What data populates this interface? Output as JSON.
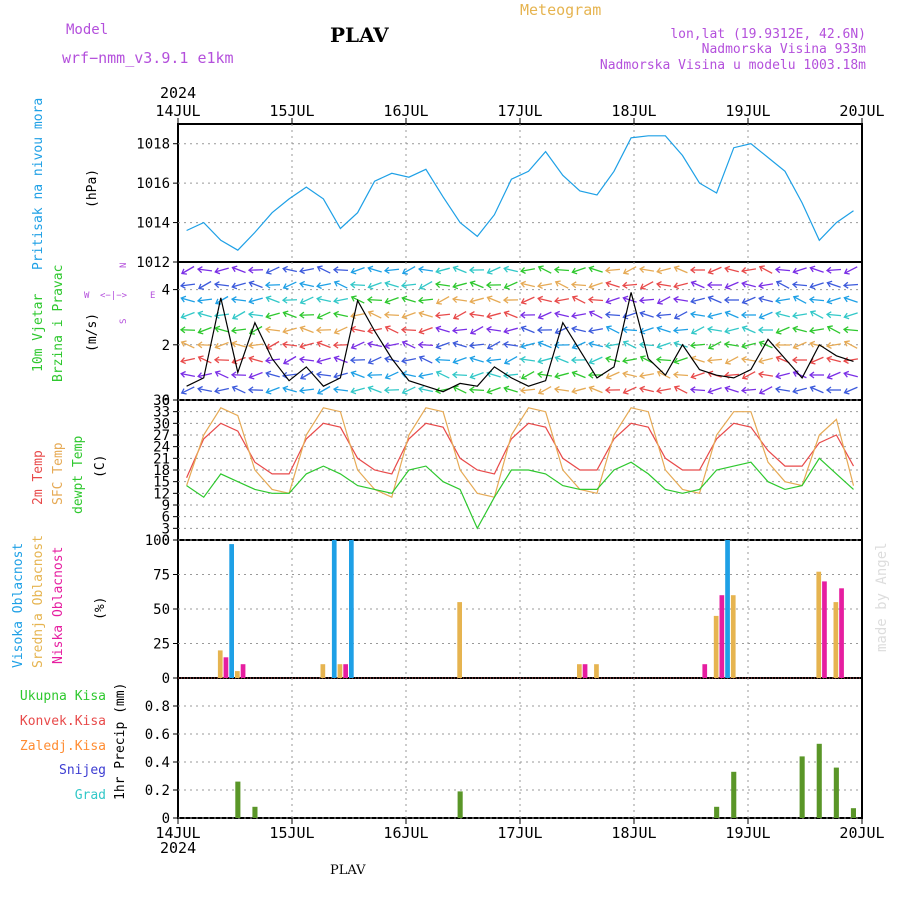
{
  "header": {
    "model_label": "Model",
    "model_name": "wrf−nmm_v3.9.1  e1km",
    "title": "PLAV",
    "meteogram_label": "Meteogram",
    "coords": "lon,lat (19.9312E, 42.6N)",
    "elevation": "Nadmorska Visina 933m",
    "model_elevation": "Nadmorska Visina u modelu 1003.18m",
    "year": "2024",
    "footer_station": "PLAV",
    "watermark": "made by Angel"
  },
  "colors": {
    "pressure": "#1ea0e6",
    "t2m": "#e84a4a",
    "tsfc": "#e6aa55",
    "dewpt": "#2ec82e",
    "cloud_high": "#1ea0e6",
    "cloud_mid": "#e6b450",
    "cloud_low": "#e61ea0",
    "precip_total": "#5a9628",
    "precip_conv": "#e84a4a",
    "precip_frozen": "#ff8c32",
    "precip_snow": "#3c3cd2",
    "precip_graupel": "#32c8c8",
    "wind_label": "#2ec82e",
    "compass": "#b450dc"
  },
  "chart_data": [
    {
      "type": "line",
      "panel": "pressure",
      "ylabels": [
        "Pritisak na nivou mora",
        "(hPa)"
      ],
      "ylim": [
        1012,
        1019
      ],
      "yticks": [
        1012,
        1014,
        1016,
        1018
      ],
      "x_day_ticks": [
        "14JUL",
        "15JUL",
        "16JUL",
        "17JUL",
        "18JUL",
        "19JUL",
        "20JUL"
      ],
      "x_step_hours": 3,
      "series": [
        {
          "values": [
            1013.6,
            1014.0,
            1013.1,
            1012.6,
            1013.5,
            1014.5,
            1015.2,
            1015.8,
            1015.2,
            1013.7,
            1014.5,
            1016.1,
            1016.5,
            1016.3,
            1016.7,
            1015.3,
            1014.0,
            1013.3,
            1014.4,
            1016.2,
            1016.6,
            1017.6,
            1016.4,
            1015.6,
            1015.4,
            1016.6,
            1018.3,
            1018.4,
            1018.4,
            1017.4,
            1016.0,
            1015.5,
            1017.8,
            1018.0,
            1017.3,
            1016.6,
            1015.0,
            1013.1,
            1014.0,
            1014.6
          ]
        }
      ]
    },
    {
      "type": "line",
      "panel": "wind",
      "ylabels": [
        "10m Vjetar",
        "Brzina i Pravac",
        "(m/s)"
      ],
      "compass": [
        "N",
        "W",
        "<−|−>",
        "E",
        "S"
      ],
      "ylim": [
        0,
        5
      ],
      "yticks": [
        0,
        2,
        4
      ],
      "series": [
        {
          "values": [
            0.5,
            0.8,
            3.7,
            1.0,
            2.8,
            1.5,
            0.7,
            1.2,
            0.5,
            0.8,
            3.6,
            2.5,
            1.5,
            0.7,
            0.5,
            0.3,
            0.6,
            0.5,
            1.2,
            0.8,
            0.5,
            0.7,
            2.8,
            1.8,
            0.8,
            1.2,
            3.9,
            1.5,
            0.9,
            2.0,
            1.1,
            0.9,
            0.8,
            1.1,
            2.2,
            1.5,
            0.8,
            2.0,
            1.6,
            1.4
          ]
        }
      ]
    },
    {
      "type": "line",
      "panel": "temperature",
      "ylabels": [
        "2m Temp",
        "SFC Temp",
        "dewpt Temp",
        "(C)"
      ],
      "ylim": [
        0,
        36
      ],
      "yticks": [
        0,
        3,
        6,
        9,
        12,
        15,
        18,
        21,
        24,
        27,
        30,
        33,
        36
      ],
      "series": [
        {
          "name": "2m Temp",
          "values": [
            16,
            26,
            30,
            28,
            20,
            17,
            17,
            26,
            30,
            29,
            21,
            18,
            17,
            26,
            30,
            29,
            21,
            18,
            17,
            26,
            30,
            29,
            21,
            18,
            18,
            26,
            30,
            29,
            21,
            18,
            18,
            26,
            30,
            29,
            23,
            19,
            19,
            25,
            27,
            19
          ]
        },
        {
          "name": "SFC Temp",
          "values": [
            14,
            27,
            34,
            32,
            18,
            13,
            12,
            27,
            34,
            33,
            18,
            13,
            11,
            27,
            34,
            33,
            18,
            12,
            11,
            27,
            34,
            33,
            18,
            13,
            12,
            27,
            34,
            33,
            18,
            13,
            12,
            27,
            33,
            33,
            20,
            15,
            14,
            27,
            31,
            14
          ]
        },
        {
          "name": "dewpt Temp",
          "values": [
            14,
            11,
            17,
            15,
            13,
            12,
            12,
            17,
            19,
            17,
            14,
            13,
            12,
            18,
            19,
            15,
            13,
            3,
            11,
            18,
            18,
            17,
            14,
            13,
            13,
            18,
            20,
            17,
            13,
            12,
            13,
            18,
            19,
            20,
            15,
            13,
            14,
            21,
            17,
            13
          ]
        }
      ]
    },
    {
      "type": "bar",
      "panel": "cloud",
      "ylabels": [
        "Visoka Oblacnost",
        "Srednja Oblacnost",
        "Niska Oblacnost",
        "(%)"
      ],
      "ylim": [
        0,
        100
      ],
      "yticks": [
        0,
        25,
        50,
        75,
        100
      ],
      "series": [
        {
          "name": "Visoka Oblacnost",
          "values": [
            0,
            0,
            0,
            97,
            0,
            0,
            0,
            0,
            0,
            100,
            100,
            0,
            0,
            0,
            0,
            0,
            0,
            0,
            0,
            0,
            0,
            0,
            0,
            0,
            0,
            0,
            0,
            0,
            0,
            0,
            0,
            0,
            100,
            0,
            0,
            0,
            0,
            0,
            0,
            0
          ]
        },
        {
          "name": "Srednja Oblacnost",
          "values": [
            0,
            0,
            20,
            5,
            0,
            0,
            0,
            0,
            10,
            10,
            0,
            0,
            0,
            0,
            0,
            0,
            55,
            0,
            0,
            0,
            0,
            0,
            0,
            10,
            10,
            0,
            0,
            0,
            0,
            0,
            0,
            45,
            60,
            0,
            0,
            0,
            0,
            77,
            55,
            0
          ]
        },
        {
          "name": "Niska Oblacnost",
          "values": [
            0,
            0,
            15,
            10,
            0,
            0,
            0,
            0,
            0,
            10,
            0,
            0,
            0,
            0,
            0,
            0,
            0,
            0,
            0,
            0,
            0,
            0,
            0,
            10,
            0,
            0,
            0,
            0,
            0,
            0,
            10,
            60,
            0,
            0,
            0,
            0,
            0,
            70,
            65,
            0
          ]
        }
      ]
    },
    {
      "type": "bar",
      "panel": "precip",
      "ylabels": [
        "Ukupna Kisa",
        "Konvek.Kisa",
        "Zaledj.Kisa",
        "Snijeg",
        "Grad",
        "1hr Precip (mm)"
      ],
      "ylim": [
        0,
        1.0
      ],
      "yticks": [
        0,
        0.2,
        0.4,
        0.6,
        0.8
      ],
      "ytick_labels": [
        "0",
        "0.2",
        "0.4",
        "0.6",
        "0.8"
      ],
      "series": [
        {
          "name": "Ukupna Kisa",
          "values": [
            0,
            0,
            0,
            0.26,
            0.08,
            0,
            0,
            0,
            0,
            0,
            0,
            0,
            0,
            0,
            0,
            0,
            0.19,
            0,
            0,
            0,
            0,
            0,
            0,
            0,
            0,
            0,
            0,
            0,
            0,
            0,
            0,
            0.08,
            0.33,
            0,
            0,
            0,
            0.44,
            0.53,
            0.36,
            0.07
          ]
        }
      ]
    }
  ]
}
